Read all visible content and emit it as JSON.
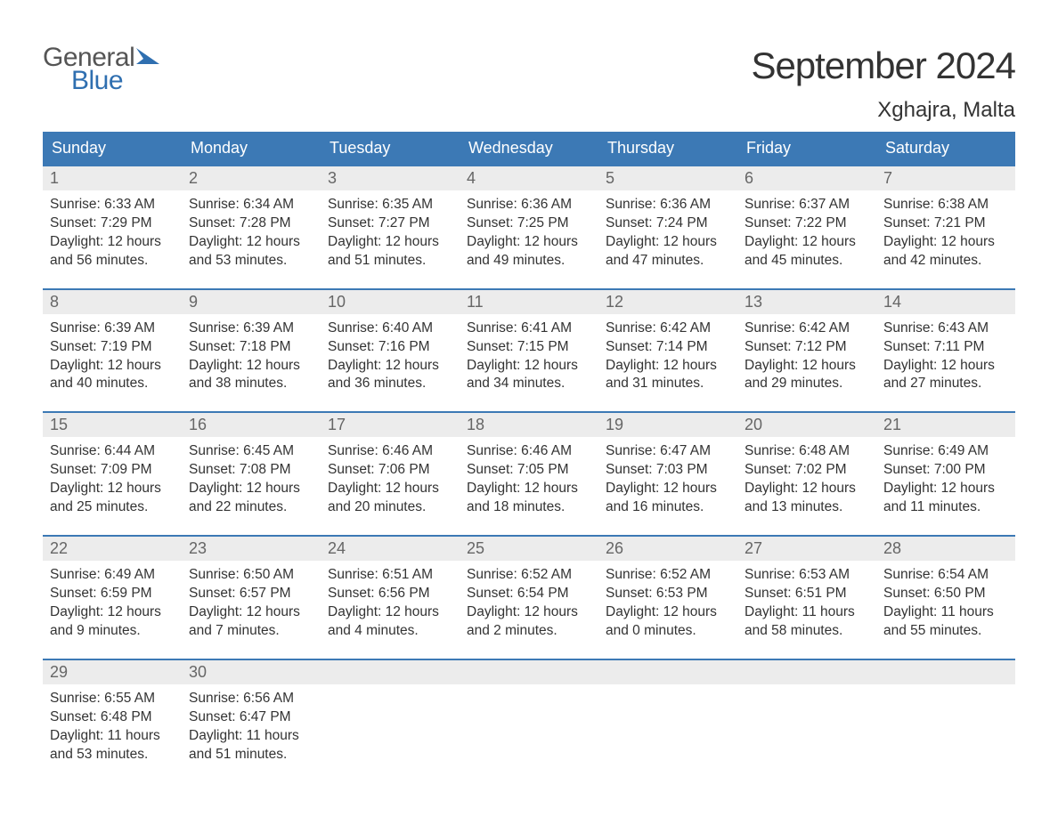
{
  "brand": {
    "general": "General",
    "blue": "Blue",
    "flag_color": "#2f6fb0"
  },
  "title": "September 2024",
  "location": "Xghajra, Malta",
  "colors": {
    "header_bg": "#3c79b5",
    "header_text": "#ffffff",
    "week_border": "#3c79b5",
    "daynum_bg": "#ececec",
    "daynum_text": "#666666",
    "body_text": "#333333",
    "page_bg": "#ffffff"
  },
  "typography": {
    "title_fontsize": 42,
    "location_fontsize": 24,
    "dow_fontsize": 18,
    "daynum_fontsize": 18,
    "body_fontsize": 15.5
  },
  "days_of_week": [
    "Sunday",
    "Monday",
    "Tuesday",
    "Wednesday",
    "Thursday",
    "Friday",
    "Saturday"
  ],
  "weeks": [
    [
      {
        "n": "1",
        "sunrise": "Sunrise: 6:33 AM",
        "sunset": "Sunset: 7:29 PM",
        "d1": "Daylight: 12 hours",
        "d2": "and 56 minutes."
      },
      {
        "n": "2",
        "sunrise": "Sunrise: 6:34 AM",
        "sunset": "Sunset: 7:28 PM",
        "d1": "Daylight: 12 hours",
        "d2": "and 53 minutes."
      },
      {
        "n": "3",
        "sunrise": "Sunrise: 6:35 AM",
        "sunset": "Sunset: 7:27 PM",
        "d1": "Daylight: 12 hours",
        "d2": "and 51 minutes."
      },
      {
        "n": "4",
        "sunrise": "Sunrise: 6:36 AM",
        "sunset": "Sunset: 7:25 PM",
        "d1": "Daylight: 12 hours",
        "d2": "and 49 minutes."
      },
      {
        "n": "5",
        "sunrise": "Sunrise: 6:36 AM",
        "sunset": "Sunset: 7:24 PM",
        "d1": "Daylight: 12 hours",
        "d2": "and 47 minutes."
      },
      {
        "n": "6",
        "sunrise": "Sunrise: 6:37 AM",
        "sunset": "Sunset: 7:22 PM",
        "d1": "Daylight: 12 hours",
        "d2": "and 45 minutes."
      },
      {
        "n": "7",
        "sunrise": "Sunrise: 6:38 AM",
        "sunset": "Sunset: 7:21 PM",
        "d1": "Daylight: 12 hours",
        "d2": "and 42 minutes."
      }
    ],
    [
      {
        "n": "8",
        "sunrise": "Sunrise: 6:39 AM",
        "sunset": "Sunset: 7:19 PM",
        "d1": "Daylight: 12 hours",
        "d2": "and 40 minutes."
      },
      {
        "n": "9",
        "sunrise": "Sunrise: 6:39 AM",
        "sunset": "Sunset: 7:18 PM",
        "d1": "Daylight: 12 hours",
        "d2": "and 38 minutes."
      },
      {
        "n": "10",
        "sunrise": "Sunrise: 6:40 AM",
        "sunset": "Sunset: 7:16 PM",
        "d1": "Daylight: 12 hours",
        "d2": "and 36 minutes."
      },
      {
        "n": "11",
        "sunrise": "Sunrise: 6:41 AM",
        "sunset": "Sunset: 7:15 PM",
        "d1": "Daylight: 12 hours",
        "d2": "and 34 minutes."
      },
      {
        "n": "12",
        "sunrise": "Sunrise: 6:42 AM",
        "sunset": "Sunset: 7:14 PM",
        "d1": "Daylight: 12 hours",
        "d2": "and 31 minutes."
      },
      {
        "n": "13",
        "sunrise": "Sunrise: 6:42 AM",
        "sunset": "Sunset: 7:12 PM",
        "d1": "Daylight: 12 hours",
        "d2": "and 29 minutes."
      },
      {
        "n": "14",
        "sunrise": "Sunrise: 6:43 AM",
        "sunset": "Sunset: 7:11 PM",
        "d1": "Daylight: 12 hours",
        "d2": "and 27 minutes."
      }
    ],
    [
      {
        "n": "15",
        "sunrise": "Sunrise: 6:44 AM",
        "sunset": "Sunset: 7:09 PM",
        "d1": "Daylight: 12 hours",
        "d2": "and 25 minutes."
      },
      {
        "n": "16",
        "sunrise": "Sunrise: 6:45 AM",
        "sunset": "Sunset: 7:08 PM",
        "d1": "Daylight: 12 hours",
        "d2": "and 22 minutes."
      },
      {
        "n": "17",
        "sunrise": "Sunrise: 6:46 AM",
        "sunset": "Sunset: 7:06 PM",
        "d1": "Daylight: 12 hours",
        "d2": "and 20 minutes."
      },
      {
        "n": "18",
        "sunrise": "Sunrise: 6:46 AM",
        "sunset": "Sunset: 7:05 PM",
        "d1": "Daylight: 12 hours",
        "d2": "and 18 minutes."
      },
      {
        "n": "19",
        "sunrise": "Sunrise: 6:47 AM",
        "sunset": "Sunset: 7:03 PM",
        "d1": "Daylight: 12 hours",
        "d2": "and 16 minutes."
      },
      {
        "n": "20",
        "sunrise": "Sunrise: 6:48 AM",
        "sunset": "Sunset: 7:02 PM",
        "d1": "Daylight: 12 hours",
        "d2": "and 13 minutes."
      },
      {
        "n": "21",
        "sunrise": "Sunrise: 6:49 AM",
        "sunset": "Sunset: 7:00 PM",
        "d1": "Daylight: 12 hours",
        "d2": "and 11 minutes."
      }
    ],
    [
      {
        "n": "22",
        "sunrise": "Sunrise: 6:49 AM",
        "sunset": "Sunset: 6:59 PM",
        "d1": "Daylight: 12 hours",
        "d2": "and 9 minutes."
      },
      {
        "n": "23",
        "sunrise": "Sunrise: 6:50 AM",
        "sunset": "Sunset: 6:57 PM",
        "d1": "Daylight: 12 hours",
        "d2": "and 7 minutes."
      },
      {
        "n": "24",
        "sunrise": "Sunrise: 6:51 AM",
        "sunset": "Sunset: 6:56 PM",
        "d1": "Daylight: 12 hours",
        "d2": "and 4 minutes."
      },
      {
        "n": "25",
        "sunrise": "Sunrise: 6:52 AM",
        "sunset": "Sunset: 6:54 PM",
        "d1": "Daylight: 12 hours",
        "d2": "and 2 minutes."
      },
      {
        "n": "26",
        "sunrise": "Sunrise: 6:52 AM",
        "sunset": "Sunset: 6:53 PM",
        "d1": "Daylight: 12 hours",
        "d2": "and 0 minutes."
      },
      {
        "n": "27",
        "sunrise": "Sunrise: 6:53 AM",
        "sunset": "Sunset: 6:51 PM",
        "d1": "Daylight: 11 hours",
        "d2": "and 58 minutes."
      },
      {
        "n": "28",
        "sunrise": "Sunrise: 6:54 AM",
        "sunset": "Sunset: 6:50 PM",
        "d1": "Daylight: 11 hours",
        "d2": "and 55 minutes."
      }
    ],
    [
      {
        "n": "29",
        "sunrise": "Sunrise: 6:55 AM",
        "sunset": "Sunset: 6:48 PM",
        "d1": "Daylight: 11 hours",
        "d2": "and 53 minutes."
      },
      {
        "n": "30",
        "sunrise": "Sunrise: 6:56 AM",
        "sunset": "Sunset: 6:47 PM",
        "d1": "Daylight: 11 hours",
        "d2": "and 51 minutes."
      },
      {
        "empty": true
      },
      {
        "empty": true
      },
      {
        "empty": true
      },
      {
        "empty": true
      },
      {
        "empty": true
      }
    ]
  ]
}
